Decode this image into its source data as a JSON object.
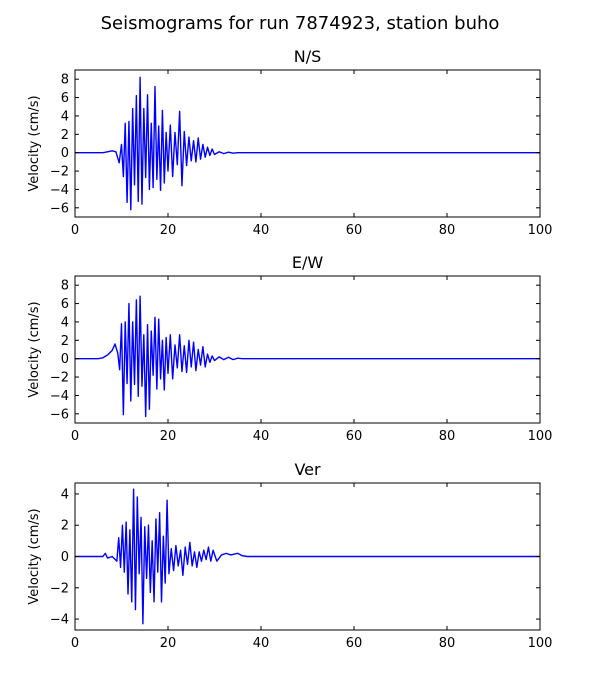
{
  "figure": {
    "title": "Seismograms for run 7874923, station buho"
  },
  "chart_data": [
    {
      "type": "line",
      "title": "N/S",
      "xlabel": "",
      "ylabel": "Velocity (cm/s)",
      "xlim": [
        0,
        100
      ],
      "ylim": [
        -7,
        9
      ],
      "xticks": [
        0,
        20,
        40,
        60,
        80,
        100
      ],
      "yticks": [
        -6,
        -4,
        -2,
        0,
        2,
        4,
        6,
        8
      ],
      "grid": false,
      "color": "#0000ff",
      "series": [
        {
          "x": [
            0,
            6,
            7,
            8,
            8.8,
            9.5,
            10,
            10.4,
            10.8,
            11.2,
            11.6,
            12,
            12.4,
            12.8,
            13.2,
            13.6,
            14,
            14.4,
            14.8,
            15.2,
            15.6,
            16,
            16.4,
            16.8,
            17.2,
            17.6,
            18,
            18.4,
            18.8,
            19.2,
            19.6,
            20,
            20.5,
            21,
            21.5,
            22,
            22.5,
            23,
            23.5,
            24,
            24.5,
            25,
            25.5,
            26,
            26.5,
            27,
            27.5,
            28,
            28.5,
            29,
            29.5,
            30,
            31,
            32,
            33,
            34,
            35,
            37,
            100
          ],
          "y": [
            0,
            0,
            0.1,
            0.2,
            0.1,
            -1.1,
            0.9,
            -2.6,
            3.2,
            -5.4,
            3.4,
            -6.2,
            4.8,
            -3.5,
            6.2,
            -5.3,
            8.2,
            -5.6,
            4.8,
            -2.7,
            6.3,
            -4.0,
            3.2,
            -3.8,
            7.2,
            -2.9,
            2.9,
            -4.1,
            4.6,
            -3.3,
            2.2,
            -2.0,
            3.0,
            -2.6,
            2.2,
            -1.3,
            4.5,
            -3.6,
            2.3,
            -1.4,
            1.7,
            -0.9,
            1.3,
            -1.0,
            1.6,
            -0.7,
            0.9,
            -0.5,
            0.6,
            -0.3,
            0.4,
            -0.2,
            0.1,
            -0.1,
            0.05,
            -0.05,
            0,
            0,
            0
          ]
        }
      ]
    },
    {
      "type": "line",
      "title": "E/W",
      "xlabel": "",
      "ylabel": "Velocity (cm/s)",
      "xlim": [
        0,
        100
      ],
      "ylim": [
        -7,
        9
      ],
      "xticks": [
        0,
        20,
        40,
        60,
        80,
        100
      ],
      "yticks": [
        -6,
        -4,
        -2,
        0,
        2,
        4,
        6,
        8
      ],
      "grid": false,
      "color": "#0000ff",
      "series": [
        {
          "x": [
            0,
            5,
            6,
            7,
            8,
            8.6,
            9.2,
            9.6,
            10,
            10.4,
            10.8,
            11.2,
            11.6,
            12,
            12.4,
            12.8,
            13.2,
            13.6,
            14,
            14.4,
            14.8,
            15.2,
            15.6,
            16,
            16.4,
            16.8,
            17.2,
            17.6,
            18,
            18.4,
            18.8,
            19.2,
            19.6,
            20,
            20.5,
            21,
            21.5,
            22,
            22.5,
            23,
            23.5,
            24,
            24.5,
            25,
            25.5,
            26,
            26.5,
            27,
            27.5,
            28,
            28.5,
            29,
            29.5,
            30,
            31,
            32,
            33,
            34,
            35,
            36,
            38,
            100
          ],
          "y": [
            0,
            0,
            0.1,
            0.4,
            0.9,
            1.6,
            0.6,
            -1.2,
            3.8,
            -6.1,
            4.0,
            -2.7,
            6.0,
            -4.6,
            4.0,
            -2.8,
            6.4,
            -4.1,
            6.8,
            -3.0,
            2.6,
            -6.3,
            3.7,
            -5.5,
            3.0,
            -1.8,
            4.5,
            -3.3,
            4.3,
            -2.2,
            2.0,
            -3.4,
            2.3,
            -1.6,
            2.6,
            -2.2,
            1.5,
            -1.0,
            2.6,
            -1.4,
            1.4,
            -1.5,
            2.0,
            -0.9,
            1.8,
            -1.3,
            1.0,
            -0.7,
            1.3,
            -0.9,
            0.5,
            -0.4,
            0.3,
            -0.2,
            0.2,
            -0.1,
            0.15,
            -0.1,
            0.05,
            0,
            0,
            0
          ]
        }
      ]
    },
    {
      "type": "line",
      "title": "Ver",
      "xlabel": "",
      "ylabel": "Velocity (cm/s)",
      "xlim": [
        0,
        100
      ],
      "ylim": [
        -4.7,
        4.7
      ],
      "xticks": [
        0,
        20,
        40,
        60,
        80,
        100
      ],
      "yticks": [
        -4,
        -2,
        0,
        2,
        4
      ],
      "grid": false,
      "color": "#0000ff",
      "series": [
        {
          "x": [
            0,
            6,
            6.5,
            7,
            8,
            9,
            9.4,
            9.8,
            10.2,
            10.6,
            11,
            11.4,
            11.8,
            12.2,
            12.6,
            13,
            13.4,
            13.8,
            14.2,
            14.6,
            15,
            15.4,
            15.8,
            16.2,
            16.6,
            17,
            17.4,
            17.8,
            18.2,
            18.6,
            19,
            19.4,
            19.8,
            20.2,
            20.7,
            21.2,
            21.7,
            22.2,
            22.7,
            23.2,
            23.7,
            24.2,
            24.7,
            25.2,
            25.7,
            26.2,
            26.7,
            27.2,
            27.7,
            28.2,
            28.7,
            29.2,
            29.7,
            30.5,
            31.5,
            32.5,
            33.5,
            35,
            36,
            37,
            40,
            100
          ],
          "y": [
            0,
            0,
            0.2,
            -0.1,
            0,
            -0.3,
            1.2,
            -0.7,
            2.0,
            -1.0,
            2.2,
            -2.4,
            1.7,
            -2.9,
            4.3,
            -3.4,
            3.8,
            -1.1,
            2.5,
            -4.3,
            1.9,
            -1.4,
            2.0,
            -2.3,
            1.0,
            -2.9,
            2.4,
            -1.0,
            2.8,
            -2.9,
            1.3,
            -1.7,
            3.6,
            -1.1,
            0.5,
            -0.9,
            0.7,
            -0.6,
            0.4,
            -1.2,
            0.6,
            -0.5,
            0.9,
            -0.6,
            0.3,
            -0.7,
            0.3,
            -0.3,
            0.4,
            -0.2,
            0.6,
            -0.3,
            0.4,
            -0.3,
            0.1,
            0.2,
            0.1,
            0.2,
            0.05,
            0,
            0,
            0
          ]
        }
      ]
    }
  ]
}
